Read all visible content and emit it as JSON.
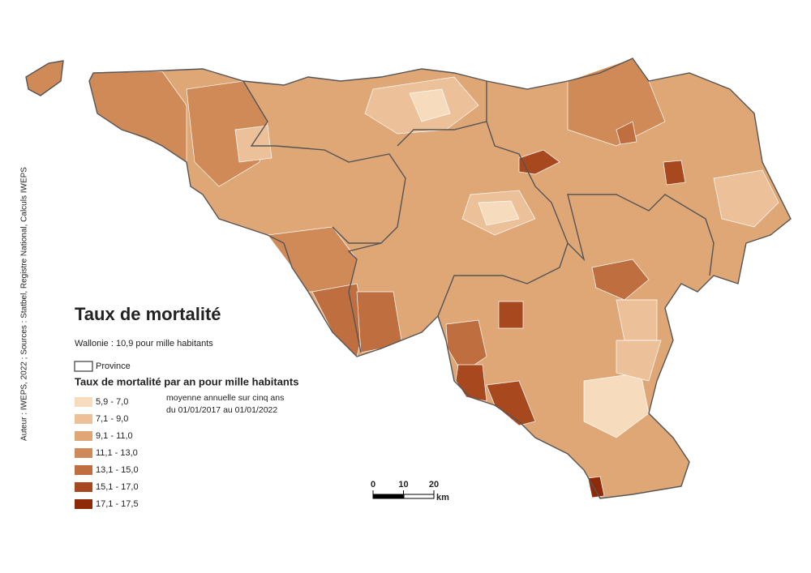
{
  "title": "Taux de mortalité",
  "subtitle": "Wallonie : 10,9 pour mille habitants",
  "credit": "Auteur : IWEPS, 2022 ; Sources : Statbel, Registre National, Calculs IWEPS",
  "legend": {
    "province": "Province",
    "title": "Taux de mortalité par an pour mille habitants",
    "note": [
      "moyenne annuelle sur cinq ans",
      "du 01/01/2017 au 01/01/2022"
    ],
    "classes": [
      {
        "label": "5,9 - 7,0",
        "color": "#f6dcbc"
      },
      {
        "label": "7,1 - 9,0",
        "color": "#ecc099"
      },
      {
        "label": "9,1 - 11,0",
        "color": "#dfa676"
      },
      {
        "label": "11,1 - 13,0",
        "color": "#d08a58"
      },
      {
        "label": "13,1 - 15,0",
        "color": "#bf6f3f"
      },
      {
        "label": "15,1 - 17,0",
        "color": "#a8481f"
      },
      {
        "label": "17,1 - 17,5",
        "color": "#8e2a07"
      }
    ]
  },
  "scale": {
    "ticks": [
      0,
      10,
      20
    ],
    "unit": "km"
  }
}
